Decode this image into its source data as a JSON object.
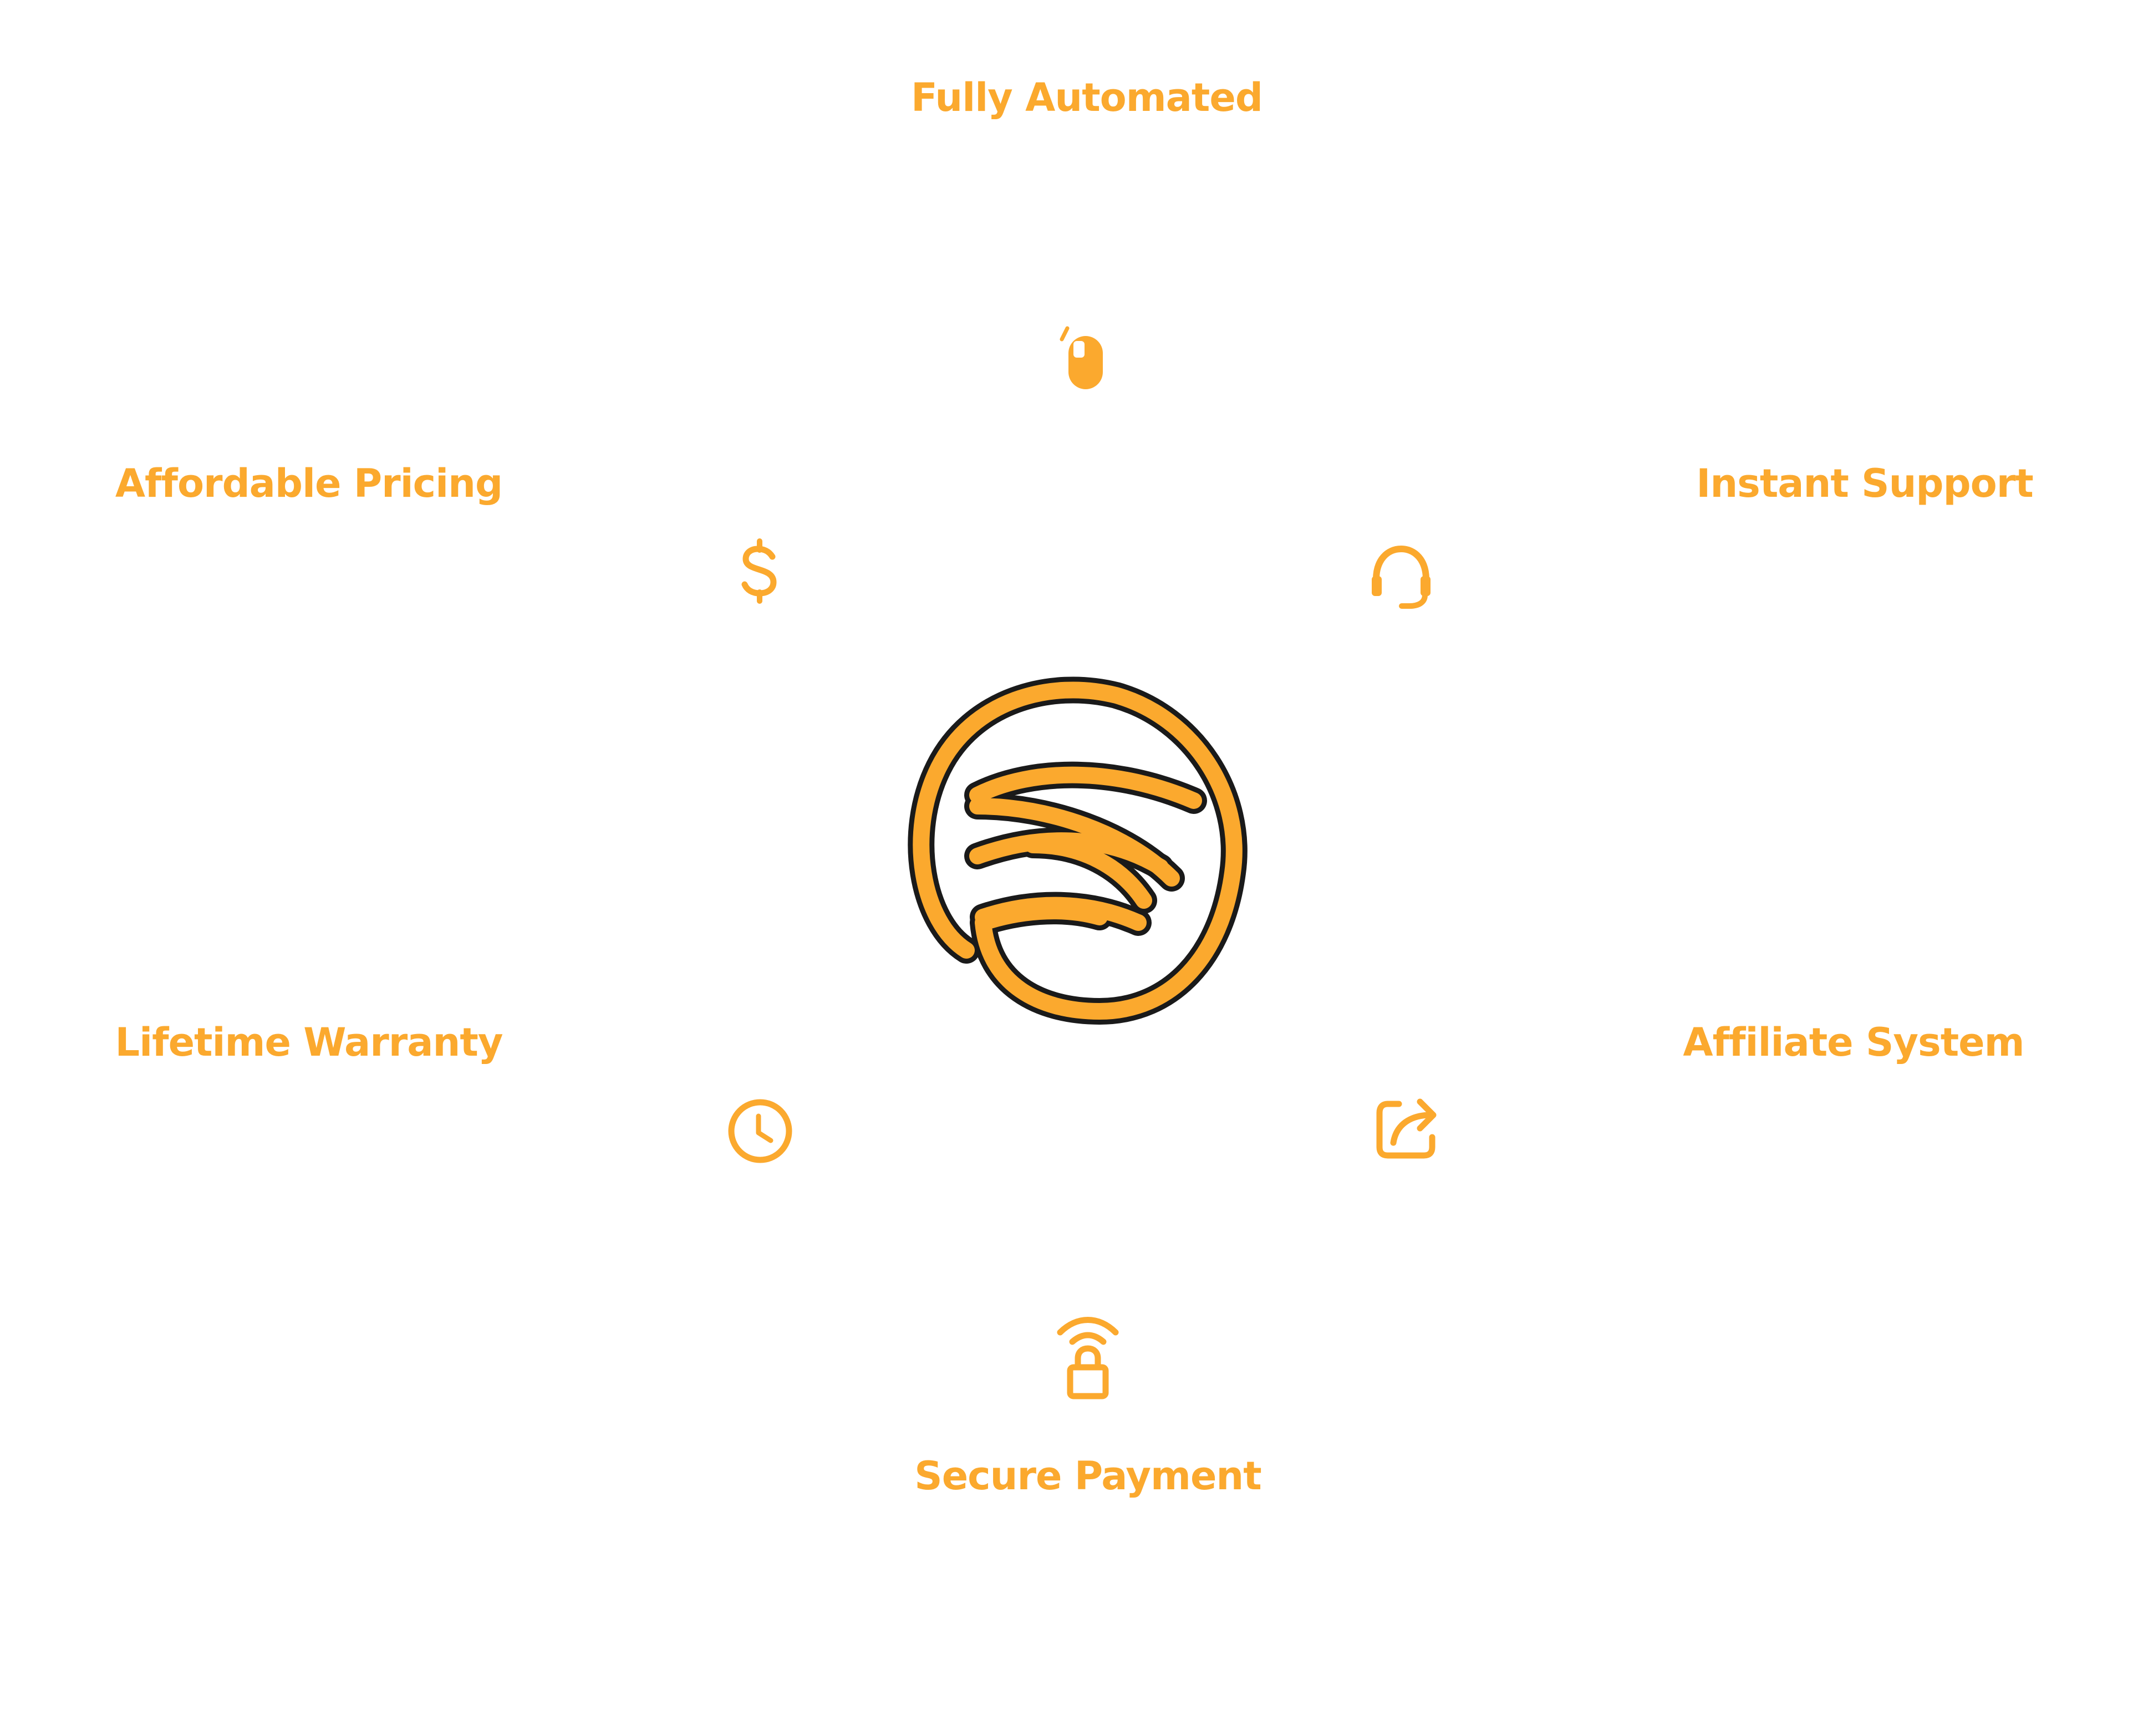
{
  "colors": {
    "accent": "#FBA92E",
    "outline": "#1A1A1A",
    "background": "#FFFFFF"
  },
  "logo": {
    "icon": "swirl-logo-icon"
  },
  "features": [
    {
      "id": "fully-automated",
      "label": "Fully Automated",
      "icon": "mouse-icon"
    },
    {
      "id": "instant-support",
      "label": "Instant Support",
      "icon": "headset-icon"
    },
    {
      "id": "affiliate-system",
      "label": "Affiliate System",
      "icon": "share-icon"
    },
    {
      "id": "secure-payment",
      "label": "Secure Payment",
      "icon": "wireless-lock-icon"
    },
    {
      "id": "lifetime-warranty",
      "label": "Lifetime Warranty",
      "icon": "clock-icon"
    },
    {
      "id": "affordable-pricing",
      "label": "Affordable Pricing",
      "icon": "dollar-icon"
    }
  ]
}
